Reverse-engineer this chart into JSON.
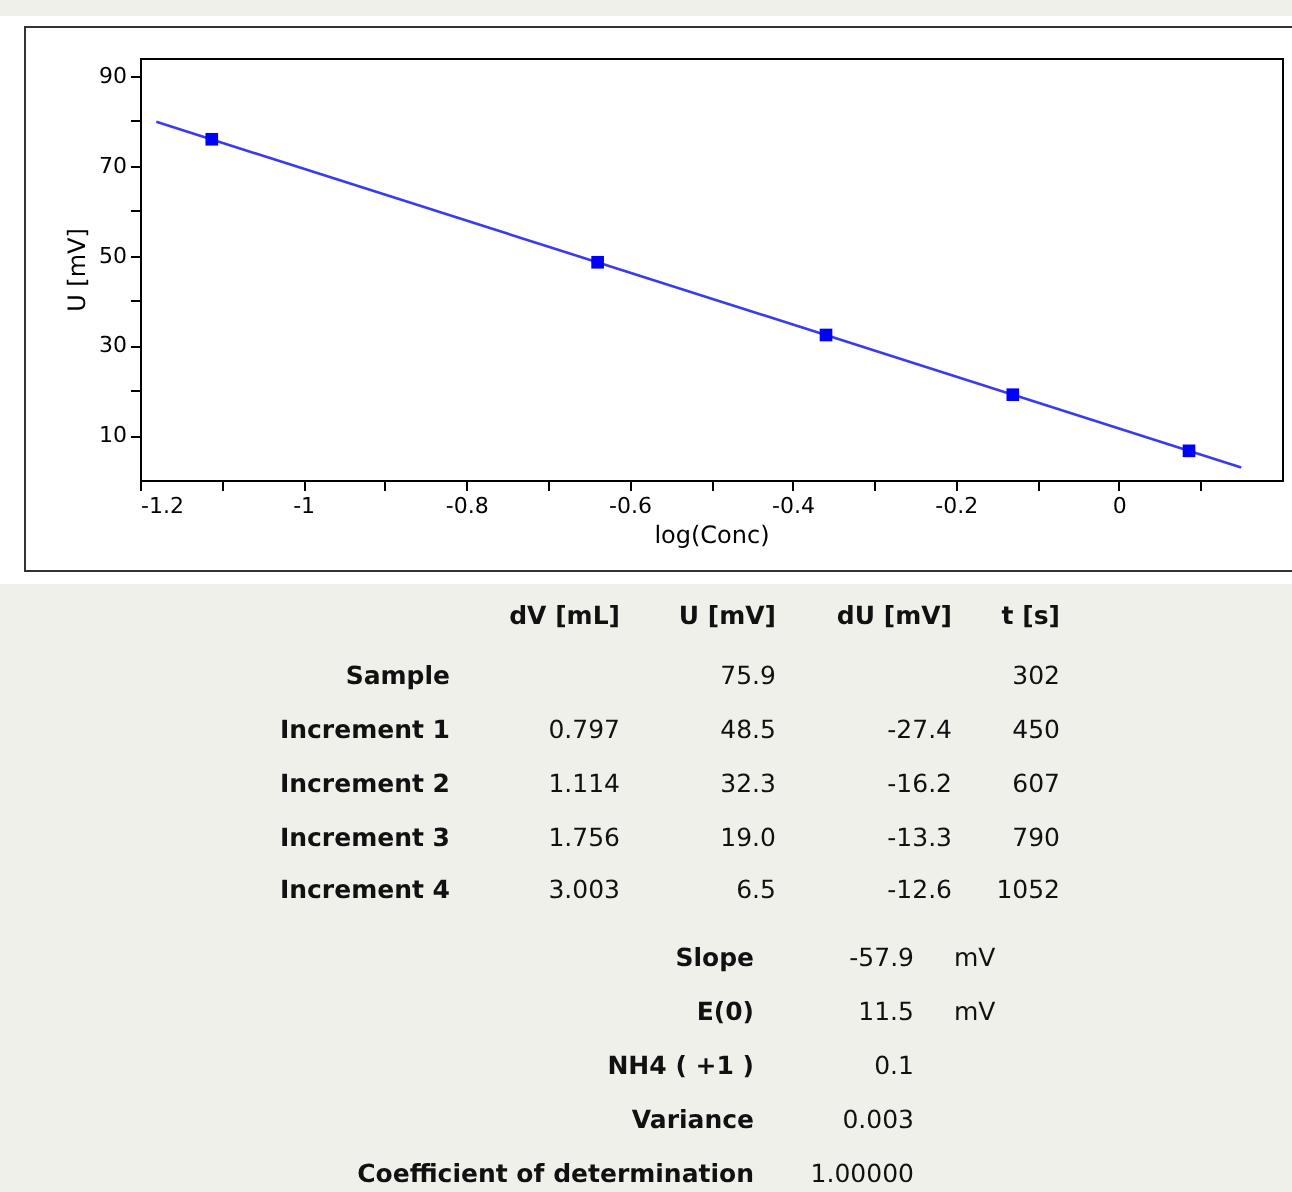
{
  "chart_data": {
    "type": "scatter",
    "xlabel": "log(Conc)",
    "ylabel": "U [mV]",
    "xlim": [
      -1.2,
      0.2
    ],
    "xticks": [
      -1.2,
      {
        "value": -1.1,
        "label": null
      },
      -1,
      {
        "value": -0.9,
        "label": null
      },
      -0.8,
      {
        "value": -0.7,
        "label": null
      },
      -0.6,
      {
        "value": -0.5,
        "label": null
      },
      -0.4,
      {
        "value": -0.3,
        "label": null
      },
      -0.2,
      {
        "value": -0.1,
        "label": null
      },
      0,
      {
        "value": 0.1,
        "label": null
      }
    ],
    "ylim": [
      0,
      94
    ],
    "yticks": [
      10,
      {
        "value": 20,
        "label": null
      },
      30,
      {
        "value": 40,
        "label": null
      },
      50,
      {
        "value": 60,
        "label": null
      },
      70,
      {
        "value": 80,
        "label": null
      },
      90
    ],
    "series": [
      {
        "type": "line",
        "color": "#3a3aee",
        "marker": "none",
        "x": [
          -1.18,
          0.15
        ],
        "values": [
          79.8,
          2.8
        ]
      },
      {
        "type": "scatter",
        "color": "#0000ff",
        "marker": "square",
        "x": [
          -1.112,
          -0.639,
          -0.359,
          -0.13,
          0.086
        ],
        "values": [
          75.9,
          48.5,
          32.3,
          19.0,
          6.5
        ]
      }
    ],
    "annotations": [
      "dV [mL]",
      "U [mV]",
      "dU [mV]",
      "t [s]",
      "Sample",
      "75.9",
      "302",
      "Increment 1",
      "0.797",
      "48.5",
      "-27.4",
      "450",
      "Increment 2",
      "1.114",
      "32.3",
      "-16.2",
      "607",
      "Increment 3",
      "1.756",
      "19.0",
      "-13.3",
      "790",
      "Increment 4",
      "3.003",
      "6.5",
      "-12.6",
      "1052",
      "Slope",
      "-57.9",
      "mV",
      "E(0)",
      "11.5",
      "mV",
      "NH4 ( +1 )",
      "0.1",
      "Variance",
      "0.003",
      "Coefficient of determination",
      "1.00000"
    ]
  }
}
